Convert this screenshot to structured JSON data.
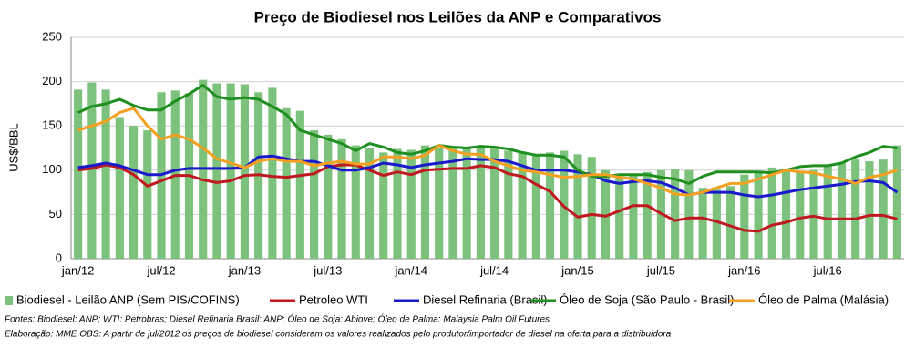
{
  "chart_data": {
    "type": "bar-line",
    "title": "Preço de Biodiesel nos Leilões da ANP e Comparativos",
    "y_label": "US$/BBL",
    "categories": [
      "jan/12",
      null,
      null,
      null,
      null,
      null,
      "jul/12",
      null,
      null,
      null,
      null,
      null,
      "jan/13",
      null,
      null,
      null,
      null,
      null,
      "jul/13",
      null,
      null,
      null,
      null,
      null,
      "jan/14",
      null,
      null,
      null,
      null,
      null,
      "jul/14",
      null,
      null,
      null,
      null,
      null,
      "jan/15",
      null,
      null,
      null,
      null,
      null,
      "jul/15",
      null,
      null,
      null,
      null,
      null,
      "jan/16",
      null,
      null,
      null,
      null,
      null,
      "jul/16",
      null,
      null,
      null,
      null,
      null
    ],
    "ylim": [
      0,
      250
    ],
    "yticks": [
      0,
      50,
      100,
      150,
      200,
      250
    ],
    "grid": true,
    "series": [
      {
        "name": "Biodiesel - Leilão ANP (Sem PIS/COFINS)",
        "kind": "bar",
        "color": "#7cc27c",
        "values": [
          191,
          199,
          191,
          160,
          150,
          145,
          188,
          190,
          187,
          202,
          198,
          198,
          197,
          188,
          193,
          170,
          167,
          145,
          140,
          135,
          128,
          125,
          120,
          124,
          123,
          128,
          125,
          127,
          125,
          127,
          126,
          122,
          120,
          118,
          120,
          122,
          118,
          115,
          100,
          92,
          95,
          98,
          100,
          101,
          100,
          80,
          78,
          82,
          95,
          98,
          103,
          100,
          97,
          100,
          105,
          108,
          112,
          110,
          112,
          128
        ]
      },
      {
        "name": "Petroleo WTI",
        "kind": "line",
        "color": "#c0181f",
        "values": [
          100,
          102,
          106,
          103,
          95,
          82,
          88,
          94,
          94,
          89,
          86,
          88,
          94,
          95,
          93,
          92,
          94,
          96,
          104,
          106,
          106,
          100,
          94,
          98,
          95,
          100,
          101,
          102,
          102,
          105,
          103,
          96,
          93,
          84,
          76,
          59,
          47,
          50,
          48,
          54,
          60,
          60,
          51,
          43,
          46,
          46,
          42,
          37,
          32,
          31,
          38,
          41,
          46,
          48,
          45,
          45,
          45,
          49,
          49,
          45
        ]
      },
      {
        "name": "Diesel Refinaria (Brasil)",
        "kind": "line",
        "color": "#1a1acc",
        "values": [
          103,
          105,
          108,
          105,
          100,
          95,
          95,
          100,
          102,
          102,
          102,
          102,
          103,
          115,
          116,
          113,
          110,
          110,
          105,
          100,
          100,
          103,
          108,
          106,
          103,
          106,
          108,
          110,
          113,
          112,
          112,
          110,
          105,
          100,
          100,
          100,
          98,
          95,
          88,
          85,
          87,
          88,
          86,
          80,
          72,
          75,
          75,
          75,
          72,
          70,
          72,
          75,
          78,
          80,
          82,
          84,
          87,
          88,
          86,
          75
        ]
      },
      {
        "name": "Óleo de Soja (São Paulo - Brasil)",
        "kind": "line",
        "color": "#1f8f1f",
        "values": [
          165,
          172,
          175,
          180,
          173,
          168,
          168,
          178,
          186,
          196,
          183,
          180,
          182,
          180,
          172,
          163,
          145,
          140,
          135,
          130,
          122,
          130,
          126,
          120,
          118,
          122,
          128,
          126,
          125,
          127,
          126,
          124,
          120,
          117,
          117,
          115,
          100,
          93,
          93,
          95,
          95,
          95,
          92,
          90,
          85,
          93,
          98,
          98,
          98,
          98,
          97,
          100,
          104,
          105,
          105,
          108,
          115,
          120,
          127,
          125
        ]
      },
      {
        "name": "Óleo de Palma (Malásia)",
        "kind": "line",
        "color": "#f5a020",
        "values": [
          145,
          150,
          155,
          165,
          170,
          150,
          135,
          140,
          135,
          125,
          113,
          108,
          103,
          110,
          113,
          110,
          110,
          105,
          108,
          110,
          107,
          107,
          115,
          115,
          113,
          117,
          128,
          122,
          118,
          118,
          110,
          105,
          100,
          98,
          95,
          92,
          93,
          95,
          95,
          92,
          90,
          85,
          80,
          73,
          72,
          75,
          80,
          85,
          85,
          90,
          95,
          100,
          98,
          97,
          93,
          90,
          85,
          92,
          95,
          100
        ]
      }
    ],
    "source": "Fontes:  Biodiesel: ANP; WTI: Petrobras; Diesel Refinaria Brasil: ANP; Óleo de Soja: Abiove; Óleo de Palma:  Malaysia Palm Oil Futures",
    "note": "Elaboração:  MME       OBS: A partir de jul/2012  os preços de biodiesel consideram  os valores realizados pelo produtor/importador  de diesel na oferta para a distribuidora"
  }
}
